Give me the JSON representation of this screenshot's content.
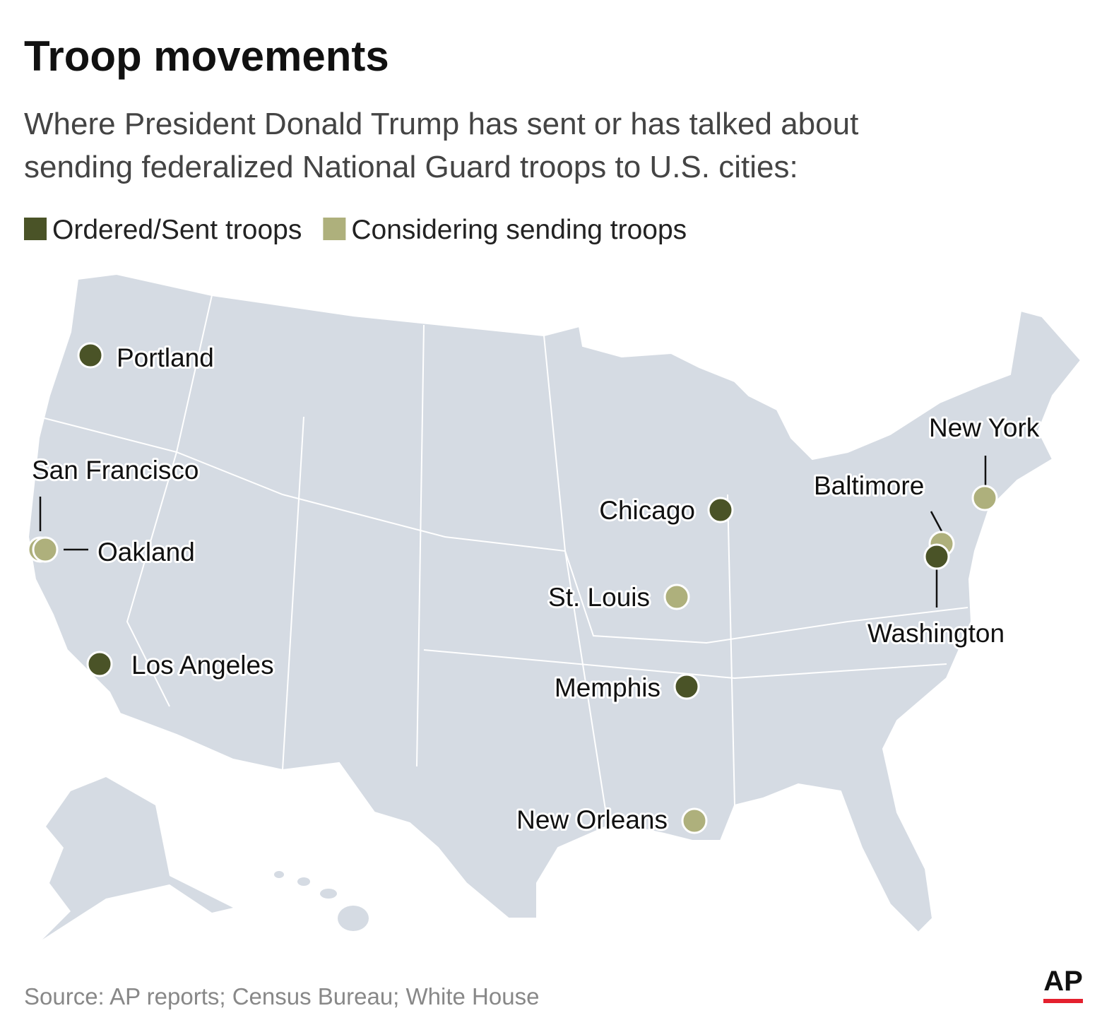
{
  "header": {
    "title": "Troop movements",
    "subtitle_lines": [
      "Where President Donald Trump has sent or has talked about",
      "sending federalized National Guard troops to U.S. cities:"
    ]
  },
  "legend": [
    {
      "label": "Ordered/Sent troops",
      "color": "#4a5327"
    },
    {
      "label": "Considering sending troops",
      "color": "#aeb07c"
    }
  ],
  "cities": [
    {
      "name": "Portland",
      "group": 0
    },
    {
      "name": "San Francisco",
      "group": 1
    },
    {
      "name": "Oakland",
      "group": 1
    },
    {
      "name": "Los Angeles",
      "group": 0
    },
    {
      "name": "Chicago",
      "group": 0
    },
    {
      "name": "St. Louis",
      "group": 1
    },
    {
      "name": "Memphis",
      "group": 0
    },
    {
      "name": "New Orleans",
      "group": 1
    },
    {
      "name": "New York",
      "group": 1
    },
    {
      "name": "Baltimore",
      "group": 1
    },
    {
      "name": "Washington",
      "group": 0
    }
  ],
  "footer": {
    "source": "Source: AP reports; Census Bureau; White House",
    "logo": "AP"
  }
}
